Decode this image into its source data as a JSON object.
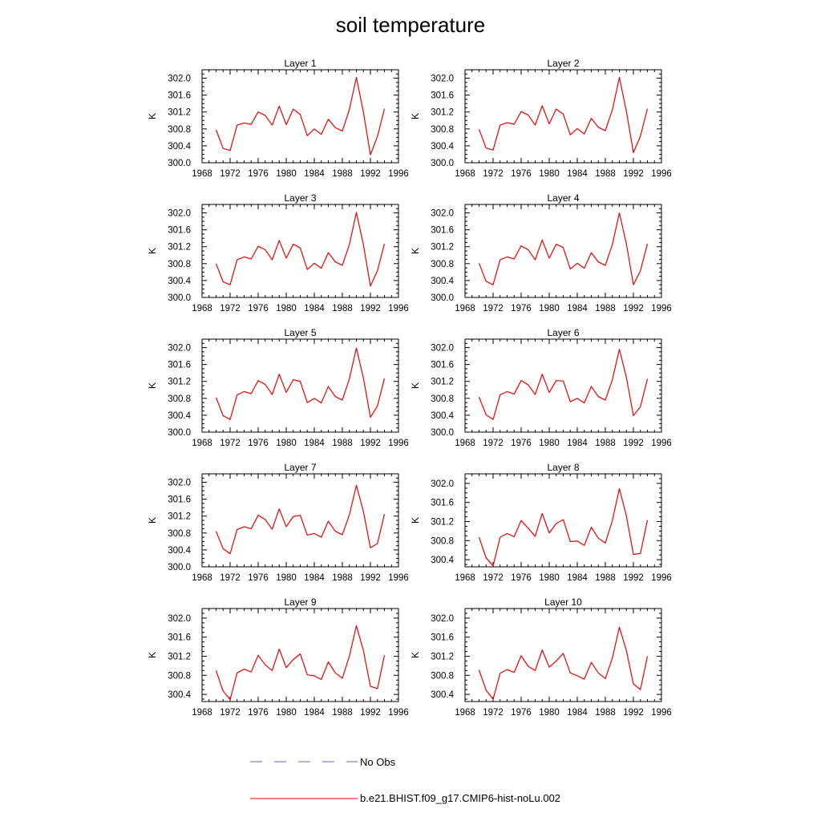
{
  "figure": {
    "title": "soil temperature"
  },
  "legend": {
    "obs_label": "No Obs",
    "obs_color": "#6666cc",
    "model_label": "b.e21.BHIST.f09_g17.CMIP6-hist-noLu.002",
    "model_color": "#ee0000"
  },
  "chart_data": [
    {
      "type": "line",
      "title": "Layer 1",
      "ylabel": "K",
      "xlim": [
        1968,
        1996
      ],
      "ylim": [
        300.0,
        302.2
      ],
      "xticks": [
        "1968",
        "1972",
        "1976",
        "1980",
        "1984",
        "1988",
        "1992",
        "1996"
      ],
      "yticks": [
        "300.0",
        "300.4",
        "300.8",
        "301.2",
        "301.6",
        "302.0"
      ],
      "series": [
        {
          "name": "b.e21.BHIST.f09_g17.CMIP6-hist-noLu.002",
          "x": [
            1970,
            1971,
            1972,
            1973,
            1974,
            1975,
            1976,
            1977,
            1978,
            1979,
            1980,
            1981,
            1982,
            1983,
            1984,
            1985,
            1986,
            1987,
            1988,
            1989,
            1990,
            1991,
            1992,
            1993,
            1994
          ],
          "values": [
            300.78,
            300.34,
            300.29,
            300.89,
            300.94,
            300.91,
            301.2,
            301.12,
            300.89,
            301.34,
            300.9,
            301.27,
            301.14,
            300.64,
            300.8,
            300.67,
            301.03,
            300.83,
            300.75,
            301.26,
            302.02,
            301.2,
            300.19,
            300.62,
            301.28
          ]
        }
      ]
    },
    {
      "type": "line",
      "title": "Layer 2",
      "ylabel": "K",
      "xlim": [
        1968,
        1996
      ],
      "ylim": [
        300.0,
        302.2
      ],
      "xticks": [
        "1968",
        "1972",
        "1976",
        "1980",
        "1984",
        "1988",
        "1992",
        "1996"
      ],
      "yticks": [
        "300.0",
        "300.4",
        "300.8",
        "301.2",
        "301.6",
        "302.0"
      ],
      "series": [
        {
          "name": "b.e21.BHIST.f09_g17.CMIP6-hist-noLu.002",
          "x": [
            1970,
            1971,
            1972,
            1973,
            1974,
            1975,
            1976,
            1977,
            1978,
            1979,
            1980,
            1981,
            1982,
            1983,
            1984,
            1985,
            1986,
            1987,
            1988,
            1989,
            1990,
            1991,
            1992,
            1993,
            1994
          ],
          "values": [
            300.79,
            300.35,
            300.3,
            300.89,
            300.95,
            300.91,
            301.21,
            301.13,
            300.89,
            301.35,
            300.92,
            301.27,
            301.15,
            300.66,
            300.81,
            300.68,
            301.05,
            300.84,
            300.76,
            301.25,
            302.02,
            301.22,
            300.24,
            300.63,
            301.28
          ]
        }
      ]
    },
    {
      "type": "line",
      "title": "Layer 3",
      "ylabel": "K",
      "xlim": [
        1968,
        1996
      ],
      "ylim": [
        300.0,
        302.2
      ],
      "xticks": [
        "1968",
        "1972",
        "1976",
        "1980",
        "1984",
        "1988",
        "1992",
        "1996"
      ],
      "yticks": [
        "300.0",
        "300.4",
        "300.8",
        "301.2",
        "301.6",
        "302.0"
      ],
      "series": [
        {
          "name": "b.e21.BHIST.f09_g17.CMIP6-hist-noLu.002",
          "x": [
            1970,
            1971,
            1972,
            1973,
            1974,
            1975,
            1976,
            1977,
            1978,
            1979,
            1980,
            1981,
            1982,
            1983,
            1984,
            1985,
            1986,
            1987,
            1988,
            1989,
            1990,
            1991,
            1992,
            1993,
            1994
          ],
          "values": [
            300.8,
            300.37,
            300.3,
            300.89,
            300.96,
            300.91,
            301.21,
            301.13,
            300.89,
            301.35,
            300.93,
            301.26,
            301.17,
            300.66,
            300.81,
            300.69,
            301.06,
            300.84,
            300.76,
            301.25,
            302.01,
            301.25,
            300.27,
            300.63,
            301.27
          ]
        }
      ]
    },
    {
      "type": "line",
      "title": "Layer 4",
      "ylabel": "K",
      "xlim": [
        1968,
        1996
      ],
      "ylim": [
        300.0,
        302.2
      ],
      "xticks": [
        "1968",
        "1972",
        "1976",
        "1980",
        "1984",
        "1988",
        "1992",
        "1996"
      ],
      "yticks": [
        "300.0",
        "300.4",
        "300.8",
        "301.2",
        "301.6",
        "302.0"
      ],
      "series": [
        {
          "name": "b.e21.BHIST.f09_g17.CMIP6-hist-noLu.002",
          "x": [
            1970,
            1971,
            1972,
            1973,
            1974,
            1975,
            1976,
            1977,
            1978,
            1979,
            1980,
            1981,
            1982,
            1983,
            1984,
            1985,
            1986,
            1987,
            1988,
            1989,
            1990,
            1991,
            1992,
            1993,
            1994
          ],
          "values": [
            300.81,
            300.38,
            300.3,
            300.89,
            300.96,
            300.91,
            301.22,
            301.13,
            300.89,
            301.36,
            300.93,
            301.26,
            301.18,
            300.67,
            300.81,
            300.69,
            301.06,
            300.84,
            300.76,
            301.25,
            302.0,
            301.27,
            300.3,
            300.63,
            301.27
          ]
        }
      ]
    },
    {
      "type": "line",
      "title": "Layer 5",
      "ylabel": "K",
      "xlim": [
        1968,
        1996
      ],
      "ylim": [
        300.0,
        302.2
      ],
      "xticks": [
        "1968",
        "1972",
        "1976",
        "1980",
        "1984",
        "1988",
        "1992",
        "1996"
      ],
      "yticks": [
        "300.0",
        "300.4",
        "300.8",
        "301.2",
        "301.6",
        "302.0"
      ],
      "series": [
        {
          "name": "b.e21.BHIST.f09_g17.CMIP6-hist-noLu.002",
          "x": [
            1970,
            1971,
            1972,
            1973,
            1974,
            1975,
            1976,
            1977,
            1978,
            1979,
            1980,
            1981,
            1982,
            1983,
            1984,
            1985,
            1986,
            1987,
            1988,
            1989,
            1990,
            1991,
            1992,
            1993,
            1994
          ],
          "values": [
            300.82,
            300.39,
            300.3,
            300.88,
            300.96,
            300.91,
            301.22,
            301.13,
            300.89,
            301.37,
            300.94,
            301.24,
            301.2,
            300.7,
            300.8,
            300.69,
            301.08,
            300.84,
            300.76,
            301.26,
            301.99,
            301.28,
            300.35,
            300.62,
            301.27
          ]
        }
      ]
    },
    {
      "type": "line",
      "title": "Layer 6",
      "ylabel": "K",
      "xlim": [
        1968,
        1996
      ],
      "ylim": [
        300.0,
        302.2
      ],
      "xticks": [
        "1968",
        "1972",
        "1976",
        "1980",
        "1984",
        "1988",
        "1992",
        "1996"
      ],
      "yticks": [
        "300.0",
        "300.4",
        "300.8",
        "301.2",
        "301.6",
        "302.0"
      ],
      "series": [
        {
          "name": "b.e21.BHIST.f09_g17.CMIP6-hist-noLu.002",
          "x": [
            1970,
            1971,
            1972,
            1973,
            1974,
            1975,
            1976,
            1977,
            1978,
            1979,
            1980,
            1981,
            1982,
            1983,
            1984,
            1985,
            1986,
            1987,
            1988,
            1989,
            1990,
            1991,
            1992,
            1993,
            1994
          ],
          "values": [
            300.83,
            300.41,
            300.3,
            300.88,
            300.96,
            300.9,
            301.22,
            301.12,
            300.89,
            301.37,
            300.94,
            301.22,
            301.21,
            300.72,
            300.8,
            300.69,
            301.08,
            300.84,
            300.76,
            301.24,
            301.96,
            301.3,
            300.39,
            300.6,
            301.26
          ]
        }
      ]
    },
    {
      "type": "line",
      "title": "Layer 7",
      "ylabel": "K",
      "xlim": [
        1968,
        1996
      ],
      "ylim": [
        300.0,
        302.2
      ],
      "xticks": [
        "1968",
        "1972",
        "1976",
        "1980",
        "1984",
        "1988",
        "1992",
        "1996"
      ],
      "yticks": [
        "300.0",
        "300.4",
        "300.8",
        "301.2",
        "301.6",
        "302.0"
      ],
      "series": [
        {
          "name": "b.e21.BHIST.f09_g17.CMIP6-hist-noLu.002",
          "x": [
            1970,
            1971,
            1972,
            1973,
            1974,
            1975,
            1976,
            1977,
            1978,
            1979,
            1980,
            1981,
            1982,
            1983,
            1984,
            1985,
            1986,
            1987,
            1988,
            1989,
            1990,
            1991,
            1992,
            1993,
            1994
          ],
          "values": [
            300.84,
            300.43,
            300.31,
            300.88,
            300.95,
            300.9,
            301.22,
            301.12,
            300.89,
            301.37,
            300.95,
            301.19,
            301.22,
            300.75,
            300.79,
            300.7,
            301.08,
            300.84,
            300.76,
            301.23,
            301.93,
            301.31,
            300.45,
            300.55,
            301.25
          ]
        }
      ]
    },
    {
      "type": "line",
      "title": "Layer 8",
      "ylabel": "K",
      "xlim": [
        1968,
        1996
      ],
      "ylim": [
        300.25,
        302.2
      ],
      "xticks": [
        "1968",
        "1972",
        "1976",
        "1980",
        "1984",
        "1988",
        "1992",
        "1996"
      ],
      "yticks": [
        "300.4",
        "300.8",
        "301.2",
        "301.6",
        "302.0"
      ],
      "series": [
        {
          "name": "b.e21.BHIST.f09_g17.CMIP6-hist-noLu.002",
          "x": [
            1970,
            1971,
            1972,
            1973,
            1974,
            1975,
            1976,
            1977,
            1978,
            1979,
            1980,
            1981,
            1982,
            1983,
            1984,
            1985,
            1986,
            1987,
            1988,
            1989,
            1990,
            1991,
            1992,
            1993,
            1994
          ],
          "values": [
            300.87,
            300.44,
            300.27,
            300.87,
            300.95,
            300.88,
            301.22,
            301.06,
            300.89,
            301.37,
            300.96,
            301.16,
            301.24,
            300.78,
            300.79,
            300.7,
            301.08,
            300.85,
            300.75,
            301.22,
            301.89,
            301.32,
            300.51,
            300.53,
            301.23
          ]
        }
      ]
    },
    {
      "type": "line",
      "title": "Layer 9",
      "ylabel": "K",
      "xlim": [
        1968,
        1996
      ],
      "ylim": [
        300.25,
        302.2
      ],
      "xticks": [
        "1968",
        "1972",
        "1976",
        "1980",
        "1984",
        "1988",
        "1992",
        "1996"
      ],
      "yticks": [
        "300.4",
        "300.8",
        "301.2",
        "301.6",
        "302.0"
      ],
      "series": [
        {
          "name": "b.e21.BHIST.f09_g17.CMIP6-hist-noLu.002",
          "x": [
            1970,
            1971,
            1972,
            1973,
            1974,
            1975,
            1976,
            1977,
            1978,
            1979,
            1980,
            1981,
            1982,
            1983,
            1984,
            1985,
            1986,
            1987,
            1988,
            1989,
            1990,
            1991,
            1992,
            1993,
            1994
          ],
          "values": [
            300.9,
            300.47,
            300.29,
            300.85,
            300.93,
            300.87,
            301.22,
            301.02,
            300.9,
            301.35,
            300.96,
            301.13,
            301.25,
            300.81,
            300.79,
            300.71,
            301.08,
            300.85,
            300.74,
            301.2,
            301.84,
            301.32,
            300.57,
            300.52,
            301.22
          ]
        }
      ]
    },
    {
      "type": "line",
      "title": "Layer 10",
      "ylabel": "K",
      "xlim": [
        1968,
        1996
      ],
      "ylim": [
        300.25,
        302.2
      ],
      "xticks": [
        "1968",
        "1972",
        "1976",
        "1980",
        "1984",
        "1988",
        "1992",
        "1996"
      ],
      "yticks": [
        "300.4",
        "300.8",
        "301.2",
        "301.6",
        "302.0"
      ],
      "series": [
        {
          "name": "b.e21.BHIST.f09_g17.CMIP6-hist-noLu.002",
          "x": [
            1970,
            1971,
            1972,
            1973,
            1974,
            1975,
            1976,
            1977,
            1978,
            1979,
            1980,
            1981,
            1982,
            1983,
            1984,
            1985,
            1986,
            1987,
            1988,
            1989,
            1990,
            1991,
            1992,
            1993,
            1994
          ],
          "values": [
            300.91,
            300.49,
            300.3,
            300.84,
            300.92,
            300.86,
            301.21,
            300.99,
            300.9,
            301.33,
            300.97,
            301.1,
            301.26,
            300.85,
            300.79,
            300.72,
            301.07,
            300.85,
            300.73,
            301.16,
            301.81,
            301.32,
            300.62,
            300.5,
            301.2
          ]
        }
      ]
    }
  ]
}
